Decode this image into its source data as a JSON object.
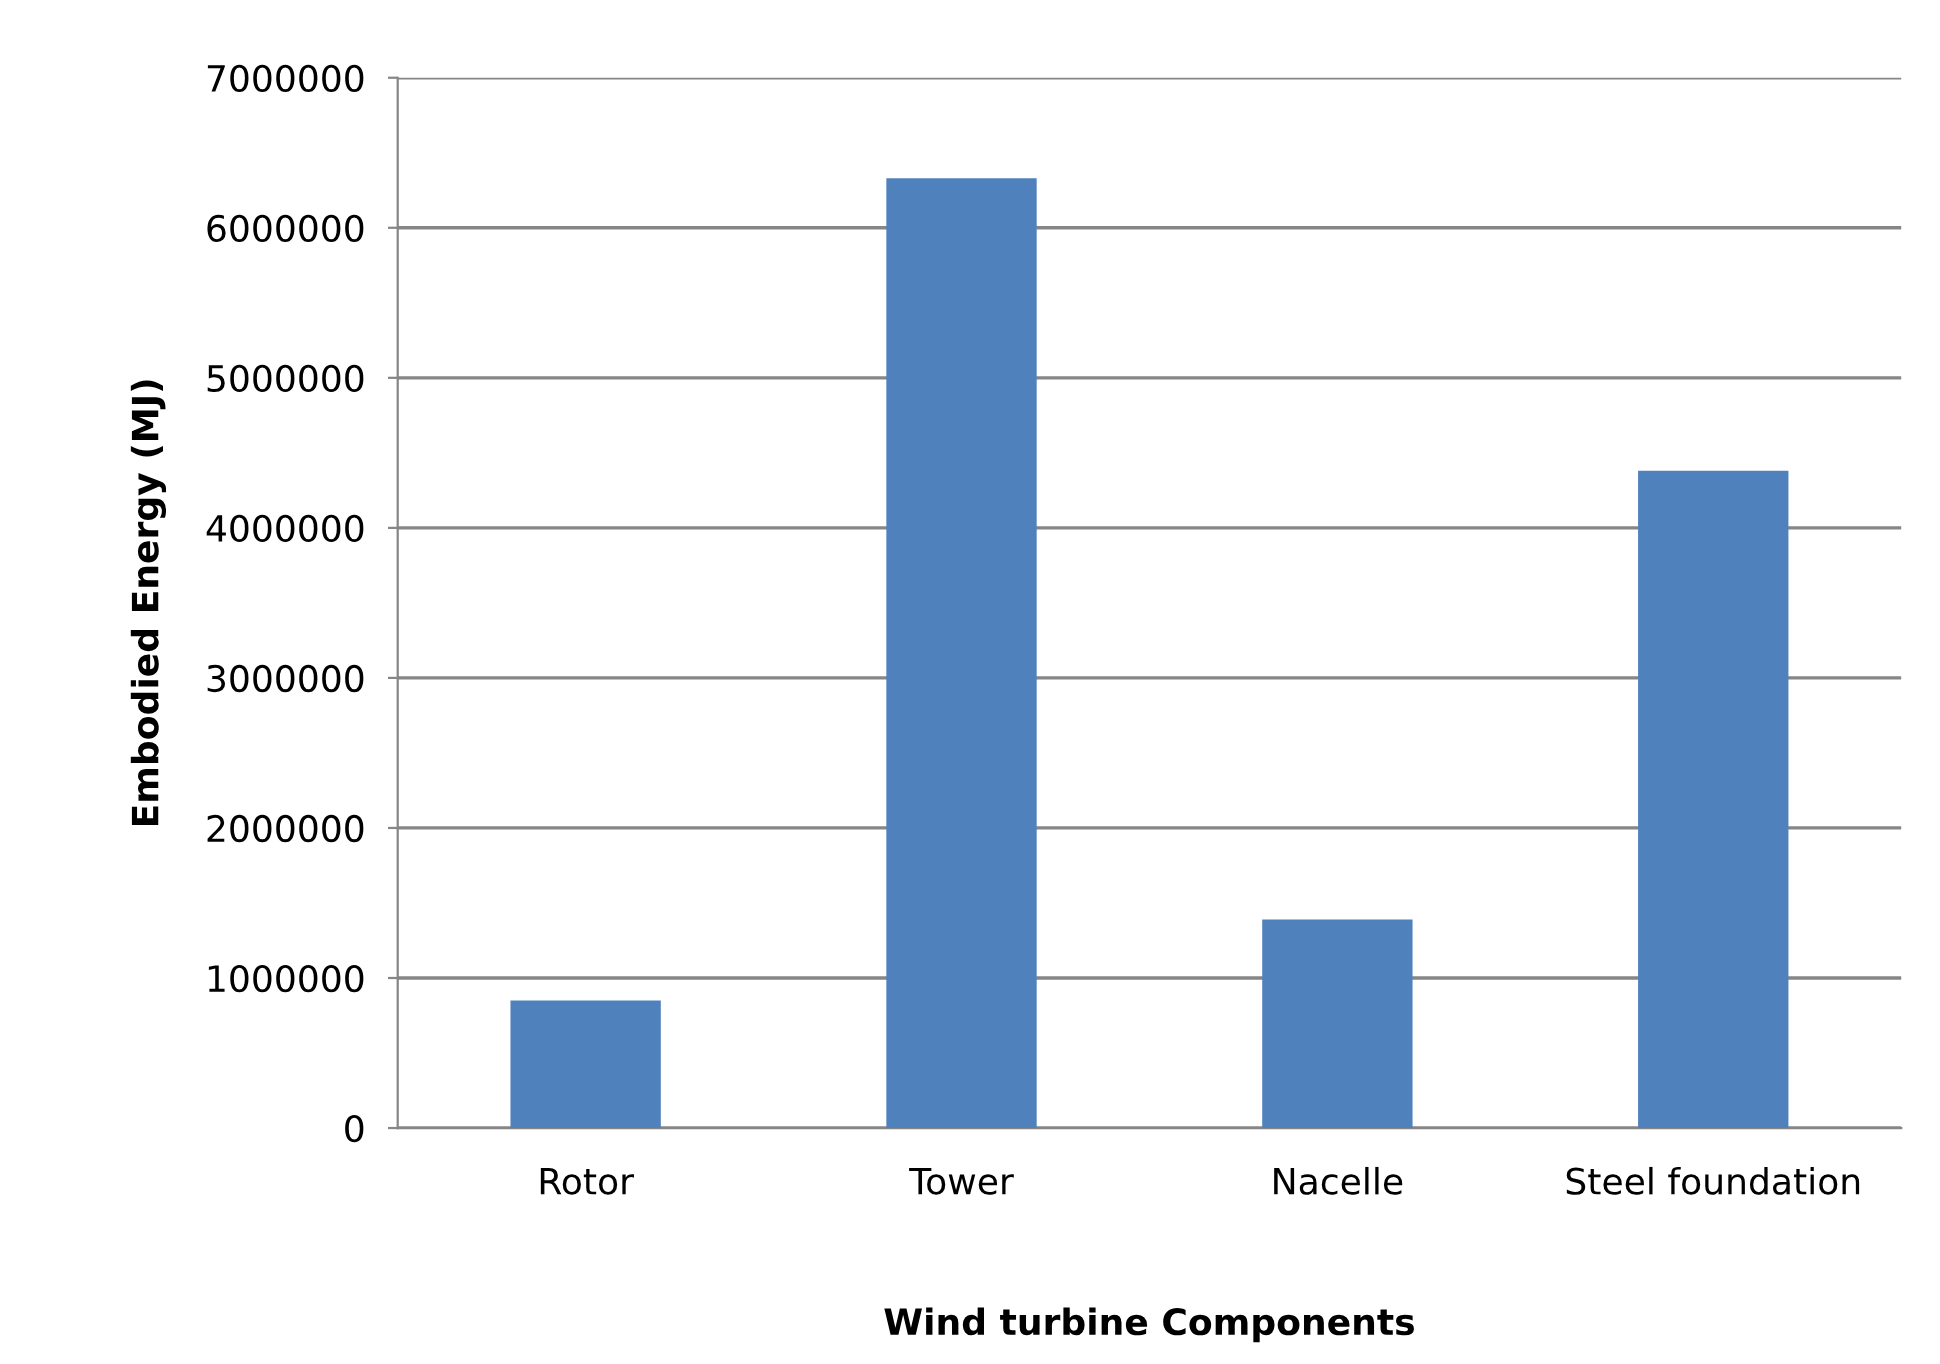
{
  "chart_data": {
    "type": "bar",
    "xlabel": "Wind turbine Components",
    "ylabel": "Embodied Energy (MJ)",
    "categories": [
      "Rotor",
      "Tower",
      "Nacelle",
      "Steel foundation"
    ],
    "values": [
      850000,
      6330000,
      1390000,
      4380000
    ],
    "color": "#4f81bd",
    "ylim": [
      0,
      7000000
    ],
    "yticks": [
      0,
      1000000,
      2000000,
      3000000,
      4000000,
      5000000,
      6000000,
      7000000
    ],
    "grid": "y",
    "legend": false
  }
}
